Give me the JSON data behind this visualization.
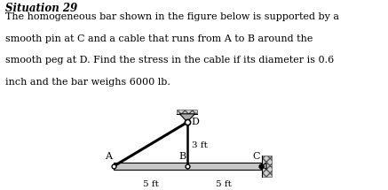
{
  "title_bold": "Situation 29",
  "description_lines": [
    "The homogeneous bar shown in the figure below is supported by a",
    "smooth pin at C and a cable that runs from A to B around the",
    "smooth peg at D. Find the stress in the cable if its diameter is 0.6",
    "inch and the bar weighs 6000 lb."
  ],
  "bg_color": "#ffffff",
  "bar_color": "#c8c8c8",
  "A": [
    0.0,
    0.0
  ],
  "B": [
    5.0,
    0.0
  ],
  "C": [
    10.0,
    0.0
  ],
  "D": [
    5.0,
    3.0
  ],
  "label_A": "A",
  "label_B": "B",
  "label_C": "C",
  "label_D": "D",
  "dim_AB": "5 ft",
  "dim_BC": "5 ft",
  "dim_BD": "3 ft",
  "fig_width": 4.37,
  "fig_height": 2.15,
  "dpi": 100
}
